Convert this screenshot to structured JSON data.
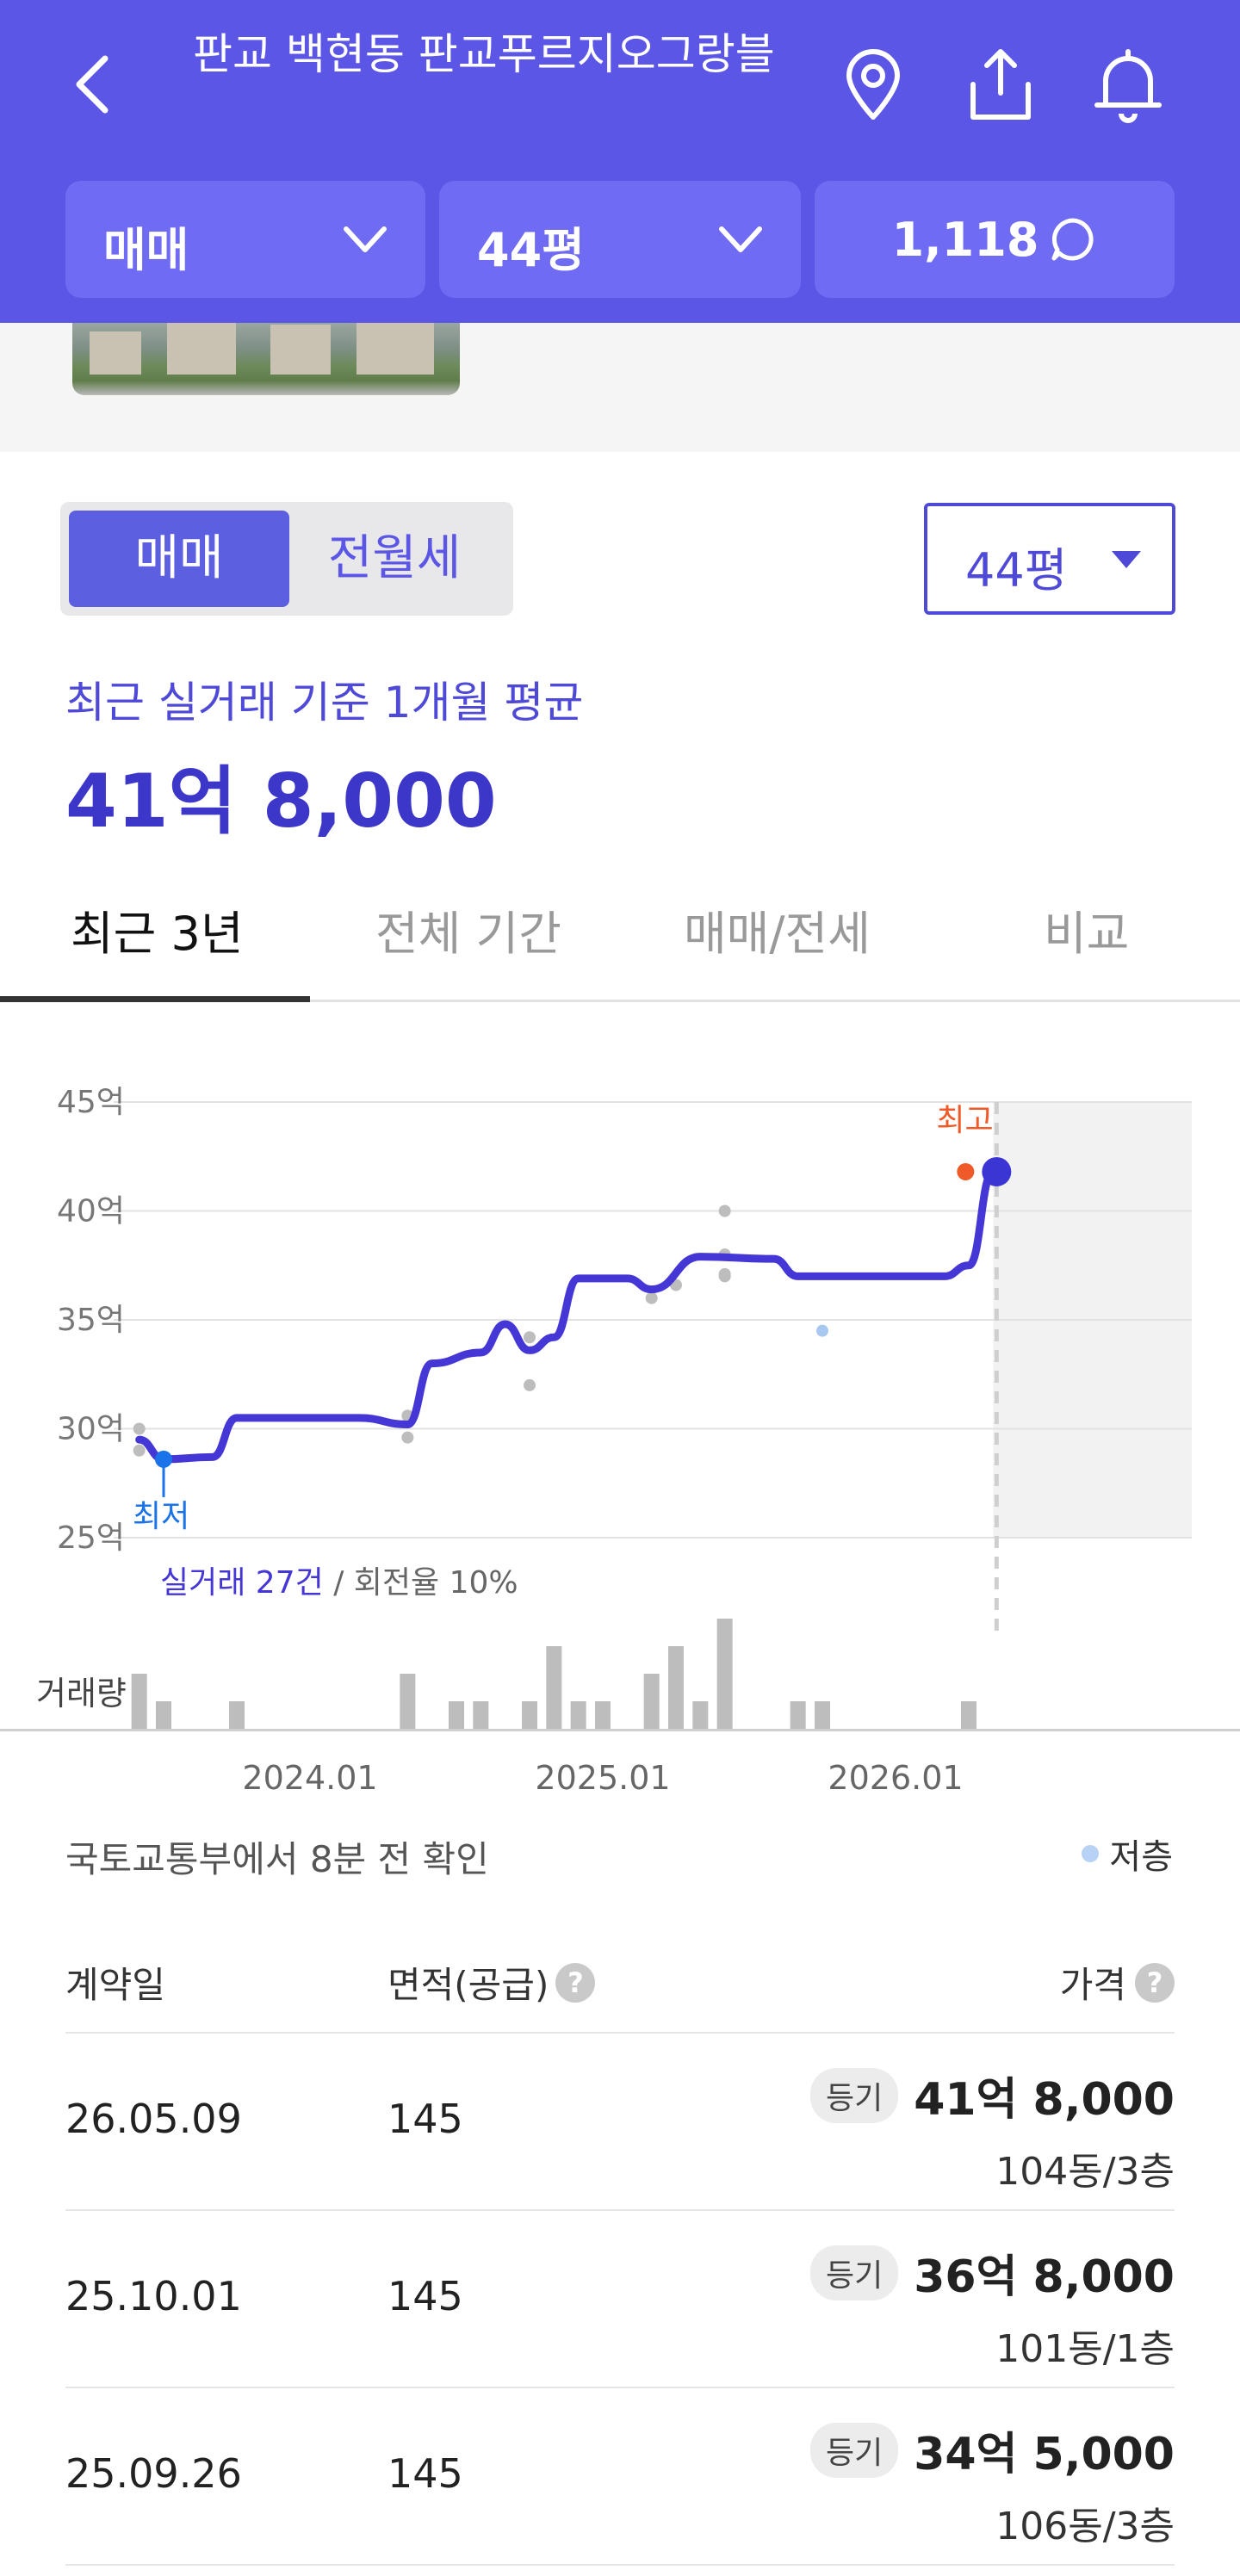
{
  "header": {
    "title": "판교 백현동 판교푸르지오그랑블",
    "filters": {
      "trade": "매매",
      "size": "44평",
      "comments": "1,118"
    }
  },
  "trade_toggle": {
    "options": [
      "매매",
      "전월세"
    ],
    "selected": "매매"
  },
  "size_select": "44평",
  "summary": {
    "label": "최근 실거래 기준 1개월 평균",
    "value": "41억 8,000"
  },
  "tabs": [
    "최근 3년",
    "전체 기간",
    "매매/전세",
    "비교"
  ],
  "chart_data": {
    "type": "line",
    "y_ticks": [
      "45억",
      "40억",
      "35억",
      "30억",
      "25억"
    ],
    "ylim": [
      25,
      45
    ],
    "x_ticks": [
      "2024.01",
      "2025.01",
      "2026.01"
    ],
    "series": [
      {
        "values": [
          {
            "x": "2023.06",
            "y": 29.5
          },
          {
            "x": "2023.07",
            "y": 28.6
          },
          {
            "x": "2023.09",
            "y": 28.7
          },
          {
            "x": "2023.10",
            "y": 30.5
          },
          {
            "x": "2023.12",
            "y": 30.5
          },
          {
            "x": "2024.03",
            "y": 30.5
          },
          {
            "x": "2024.05",
            "y": 30.2
          },
          {
            "x": "2024.06",
            "y": 33.0
          },
          {
            "x": "2024.08",
            "y": 33.5
          },
          {
            "x": "2024.09",
            "y": 34.8
          },
          {
            "x": "2024.10",
            "y": 33.6
          },
          {
            "x": "2024.11",
            "y": 34.2
          },
          {
            "x": "2024.12",
            "y": 36.9
          },
          {
            "x": "2025.02",
            "y": 36.9
          },
          {
            "x": "2025.03",
            "y": 36.4
          },
          {
            "x": "2025.05",
            "y": 37.9
          },
          {
            "x": "2025.08",
            "y": 37.8
          },
          {
            "x": "2025.09",
            "y": 37.0
          },
          {
            "x": "2026.03",
            "y": 37.0
          },
          {
            "x": "2026.04",
            "y": 37.5
          },
          {
            "x": "2026.05",
            "y": 41.8
          }
        ]
      }
    ],
    "transactions": [
      {
        "x": "2023.06",
        "y": 30.0
      },
      {
        "x": "2023.06",
        "y": 29.0
      },
      {
        "x": "2024.05",
        "y": 29.6
      },
      {
        "x": "2024.05",
        "y": 30.6
      },
      {
        "x": "2024.10",
        "y": 34.2
      },
      {
        "x": "2024.10",
        "y": 32.0
      },
      {
        "x": "2025.03",
        "y": 36.0
      },
      {
        "x": "2025.04",
        "y": 36.6
      },
      {
        "x": "2025.06",
        "y": 40.0
      },
      {
        "x": "2025.06",
        "y": 38.0
      },
      {
        "x": "2025.06",
        "y": 37.1
      },
      {
        "x": "2025.06",
        "y": 37.0
      }
    ],
    "low_floor_transactions": [
      {
        "x": "2025.10",
        "y": 34.5
      }
    ],
    "markers": {
      "high": {
        "label": "최고",
        "x": "2026.05",
        "y": 41.8
      },
      "low": {
        "label": "최저",
        "x": "2023.07",
        "y": 28.6
      }
    },
    "stats": {
      "count": "실거래 27건",
      "turnover": "회전율 10%"
    },
    "volume_label": "거래량",
    "volume": [
      2,
      1,
      1,
      2,
      1,
      1,
      1,
      3,
      1,
      1,
      2,
      3,
      1,
      4,
      1,
      1,
      1
    ]
  },
  "source": "국토교통부에서 8분 전 확인",
  "legend": "저층",
  "table": {
    "headers": {
      "date": "계약일",
      "area": "면적(공급)",
      "price": "가격"
    },
    "rows": [
      {
        "date": "26.05.09",
        "area": "145",
        "badge": "등기",
        "price": "41억 8,000",
        "unit": "104동/3층"
      },
      {
        "date": "25.10.01",
        "area": "145",
        "badge": "등기",
        "price": "36억 8,000",
        "unit": "101동/1층"
      },
      {
        "date": "25.09.26",
        "area": "145",
        "badge": "등기",
        "price": "34억 5,000",
        "unit": "106동/3층"
      }
    ]
  },
  "colors": {
    "accent": "#5c56e6",
    "line": "#4537d6",
    "high": "#f05a28",
    "low": "#1a73e8"
  }
}
